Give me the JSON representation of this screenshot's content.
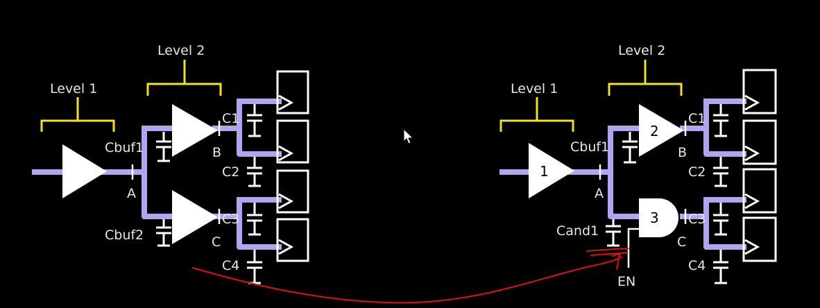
{
  "colors": {
    "background": "#000000",
    "wire": "#b4a4f0",
    "bracket": "#f2e21c",
    "component": "#ffffff",
    "label": "#e6e6e6",
    "annotation": "#e01010"
  },
  "left_circuit": {
    "level1_label": "Level 1",
    "level2_label": "Level 2",
    "node_a": "A",
    "node_b": "B",
    "node_c": "C",
    "cap_buf1": "Cbuf1",
    "cap_buf2": "Cbuf2",
    "cap_c1": "C1",
    "cap_c2": "C2",
    "cap_c3": "C3",
    "cap_c4": "C4"
  },
  "right_circuit": {
    "level1_label": "Level 1",
    "level2_label": "Level 2",
    "node_a": "A",
    "node_b": "B",
    "node_c": "C",
    "cap_buf1": "Cbuf1",
    "cap_and1": "Cand1",
    "cap_c1": "C1",
    "cap_c2": "C2",
    "cap_c3": "C3",
    "cap_c4": "C4",
    "gate1": "1",
    "gate2": "2",
    "gate3": "3",
    "enable": "EN"
  },
  "icons": {
    "cursor": "mouse-pointer-icon",
    "buffer": "buffer-triangle-icon",
    "and_gate": "and-gate-icon",
    "flip_flop": "flip-flop-icon",
    "capacitor": "capacitor-icon"
  }
}
